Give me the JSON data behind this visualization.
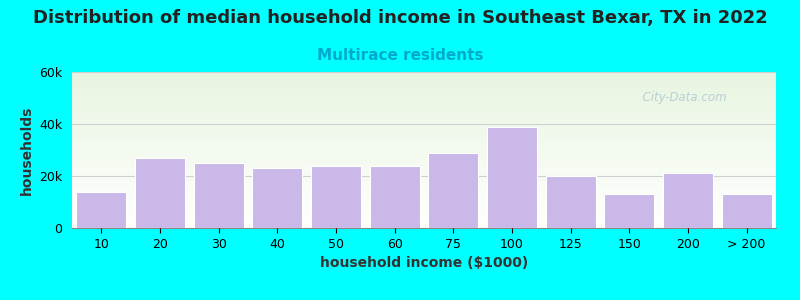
{
  "title": "Distribution of median household income in Southeast Bexar, TX in 2022",
  "subtitle": "Multirace residents",
  "xlabel": "household income ($1000)",
  "ylabel": "households",
  "bar_labels": [
    "10",
    "20",
    "30",
    "40",
    "50",
    "60",
    "75",
    "100",
    "125",
    "150",
    "200",
    "> 200"
  ],
  "bar_values": [
    14000,
    27000,
    25000,
    23000,
    24000,
    24000,
    29000,
    39000,
    20000,
    13000,
    21000,
    13000
  ],
  "bar_color": "#c9b8e8",
  "bar_edge_color": "#ffffff",
  "ylim": [
    0,
    60000
  ],
  "yticks": [
    0,
    20000,
    40000,
    60000
  ],
  "ytick_labels": [
    "0",
    "20k",
    "40k",
    "60k"
  ],
  "background_outer": "#00ffff",
  "background_inner_top": "#e8f5e0",
  "background_inner_bottom": "#ffffff",
  "title_fontsize": 13,
  "subtitle_fontsize": 11,
  "subtitle_color": "#00aacc",
  "axis_label_fontsize": 10,
  "tick_fontsize": 9,
  "watermark_text": "City-Data.com",
  "watermark_color": "#b0c8d0",
  "grid_color": "#d0d0d0"
}
